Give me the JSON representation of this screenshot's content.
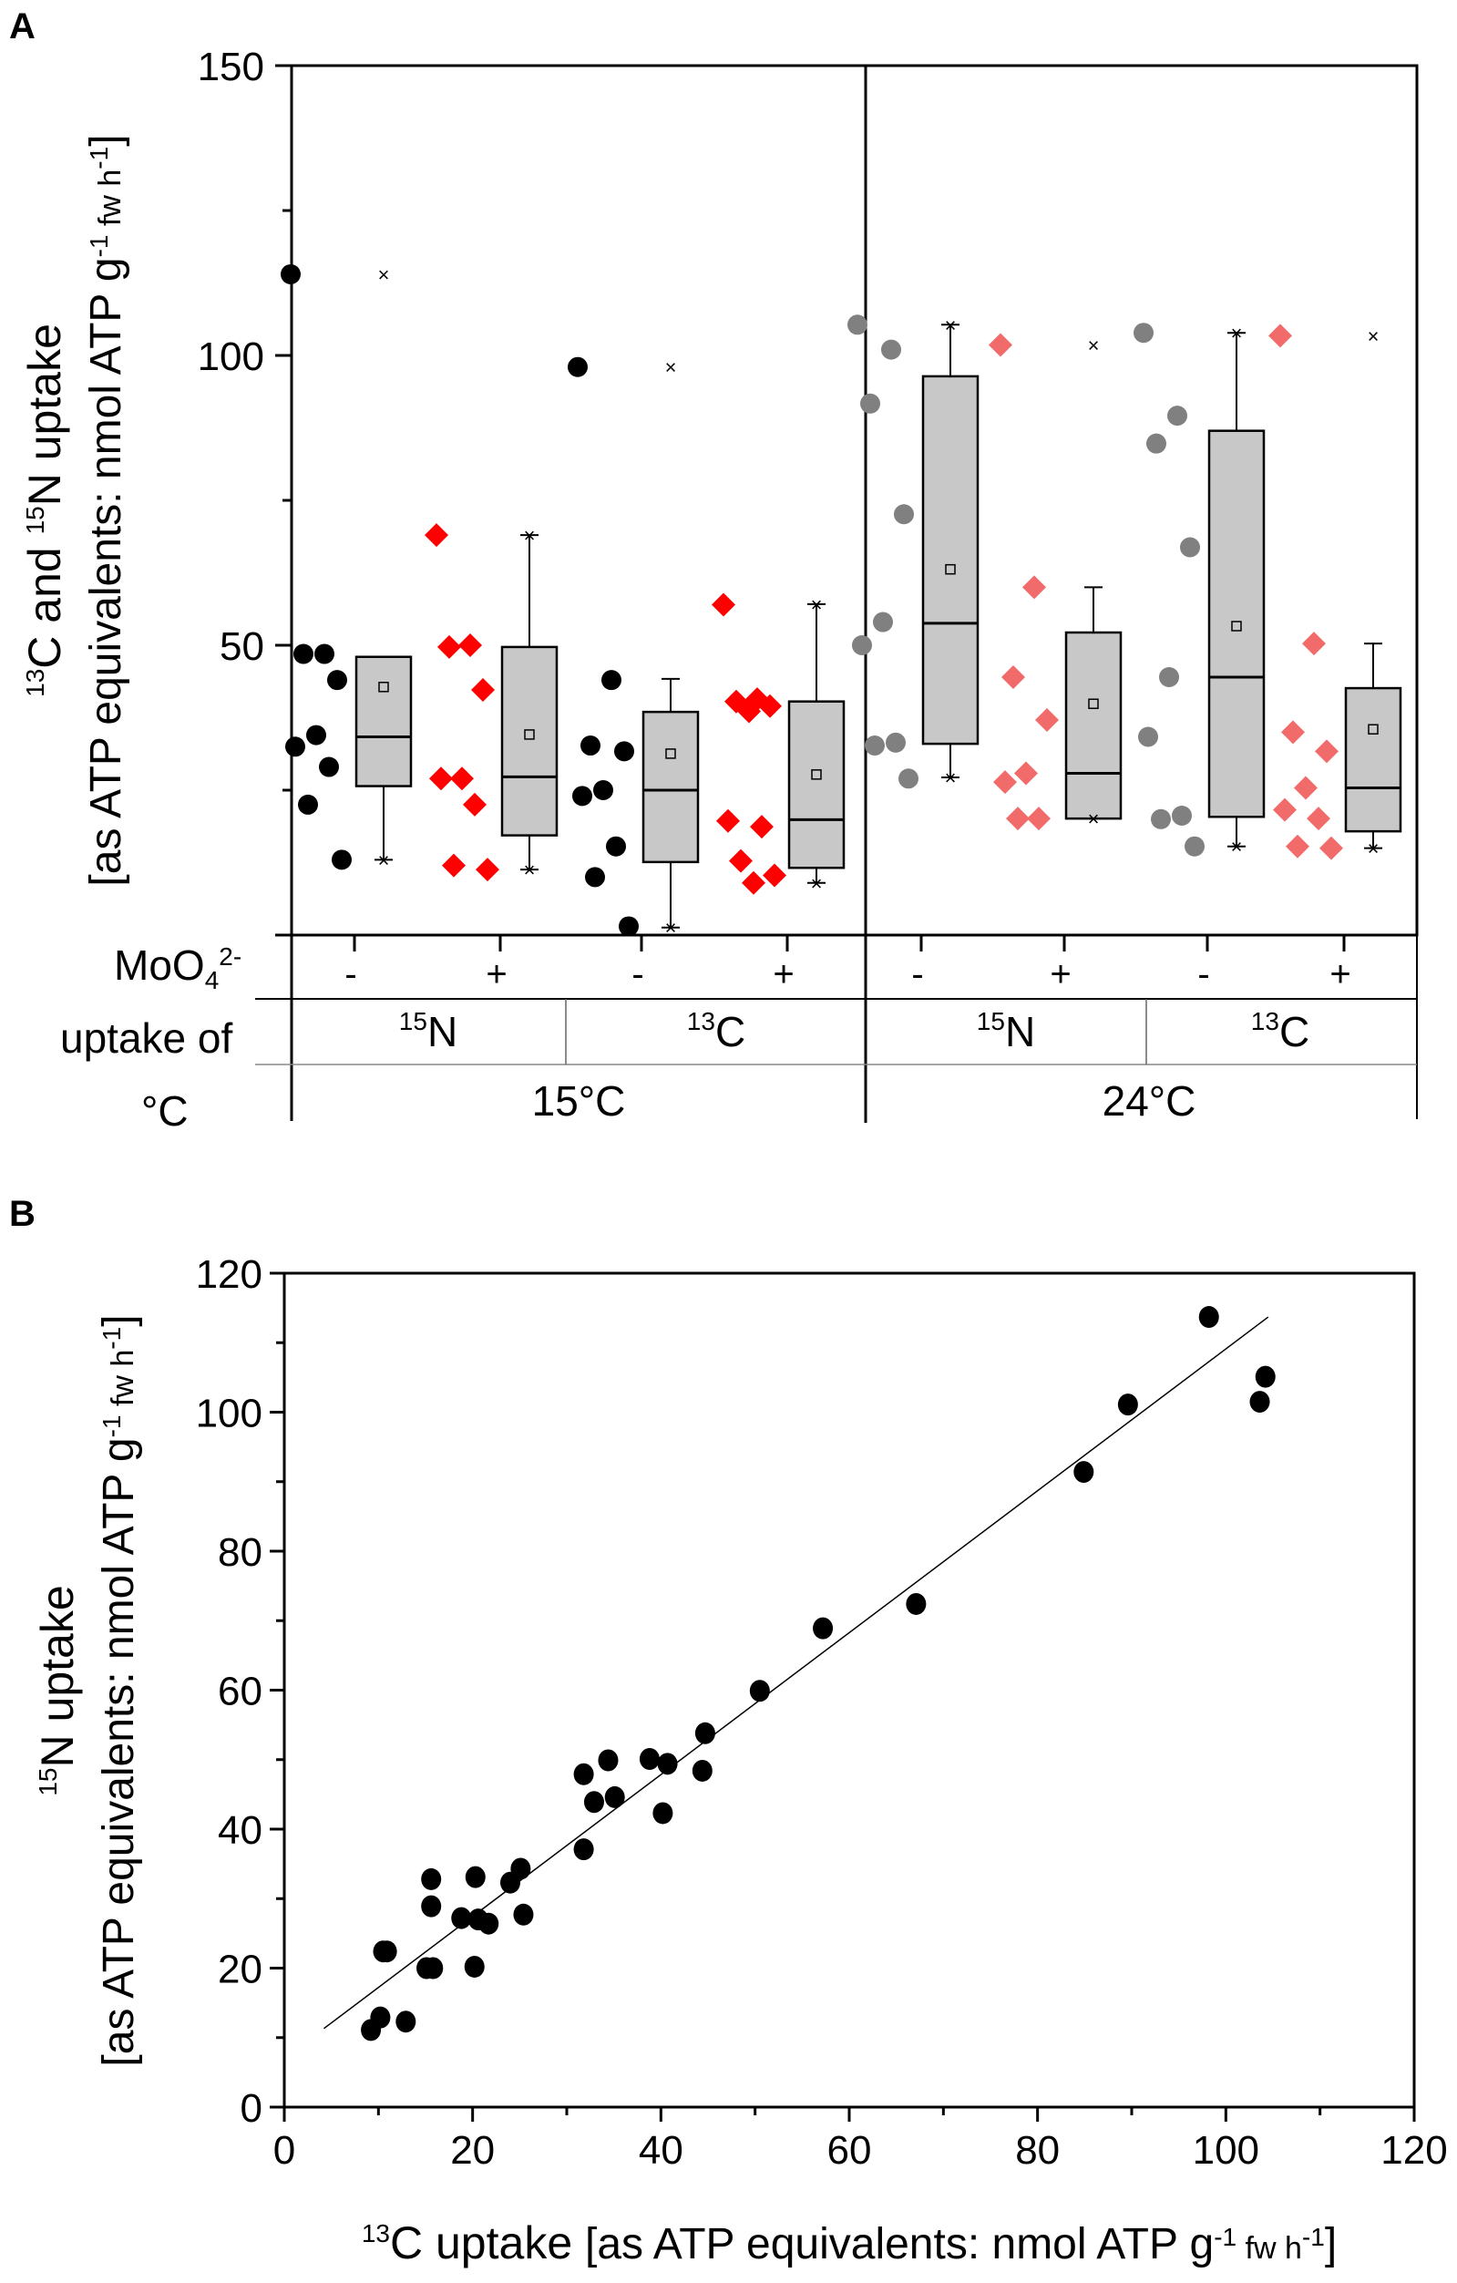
{
  "chart_data": [
    {
      "type": "box",
      "panel_label": "A",
      "ylabel": {
        "sup1": "13",
        "t1": "C and ",
        "sup2": "15",
        "t2": "N uptake",
        "bracket": "[as ATP equivalents: nmol ATP g",
        "sup3": "-1",
        "t3": " fw h",
        "sup4": "-1",
        "t4": "]"
      },
      "ylim": [
        0,
        150
      ],
      "yticks": [
        50,
        100,
        150
      ],
      "row_labels": {
        "moo4": "MoO",
        "moo4_sub": "4",
        "moo4_sup": "2-",
        "uptake_of": "uptake of",
        "temp": "°C"
      },
      "temperatures": [
        "15°C",
        "24°C"
      ],
      "isotopes": [
        {
          "sup": "15",
          "el": "N"
        },
        {
          "sup": "13",
          "el": "C"
        },
        {
          "sup": "15",
          "el": "N"
        },
        {
          "sup": "13",
          "el": "C"
        }
      ],
      "colors": {
        "black": "#000000",
        "red": "#ff0000",
        "gray": "#808080",
        "salmon": "#f26b6b",
        "box": "#c8c8c8"
      },
      "groups": [
        {
          "temp": "15°C",
          "isotope": "15N",
          "moo4": "-",
          "marker": "circle",
          "color": "black",
          "points": [
            114,
            48.5,
            48.5,
            44,
            34.5,
            32.5,
            29,
            22.5,
            13
          ],
          "box": {
            "q1": 25.7,
            "median": 34.2,
            "q3": 48,
            "mean": 42.8,
            "whisker_low": 13,
            "whisker_high": 48,
            "max": 114
          }
        },
        {
          "temp": "15°C",
          "isotope": "15N",
          "moo4": "+",
          "marker": "diamond",
          "color": "red",
          "points": [
            69,
            50,
            49.7,
            42.3,
            27,
            27,
            22.5,
            12,
            11.3
          ],
          "box": {
            "q1": 17.2,
            "median": 27.3,
            "q3": 49.7,
            "mean": 34.6,
            "whisker_low": 11.3,
            "whisker_high": 69,
            "max": 69
          }
        },
        {
          "temp": "15°C",
          "isotope": "13C",
          "moo4": "-",
          "marker": "circle",
          "color": "black",
          "points": [
            98,
            44,
            32.7,
            31.7,
            25,
            24,
            15.3,
            10,
            1.5
          ],
          "box": {
            "q1": 12.6,
            "median": 25,
            "q3": 38.5,
            "mean": 31.3,
            "whisker_low": 1.3,
            "whisker_high": 44.2,
            "max": 98
          }
        },
        {
          "temp": "15°C",
          "isotope": "13C",
          "moo4": "+",
          "marker": "diamond",
          "color": "red",
          "points": [
            57,
            40.7,
            40.3,
            39.5,
            38.6,
            19.7,
            18.7,
            12.8,
            10.3,
            9
          ],
          "box": {
            "q1": 11.6,
            "median": 19.9,
            "q3": 40.3,
            "mean": 27.7,
            "whisker_low": 9,
            "whisker_high": 57.1,
            "max": 57.1
          }
        },
        {
          "temp": "24°C",
          "isotope": "15N",
          "moo4": "-",
          "marker": "circle",
          "color": "gray",
          "points": [
            105.3,
            101,
            91.7,
            72.6,
            54,
            50,
            33.2,
            32.7,
            27
          ],
          "box": {
            "q1": 33,
            "median": 53.8,
            "q3": 96.4,
            "mean": 63.1,
            "whisker_low": 27.2,
            "whisker_high": 105.3,
            "max": 105.3
          }
        },
        {
          "temp": "24°C",
          "isotope": "15N",
          "moo4": "+",
          "marker": "diamond",
          "color": "salmon",
          "points": [
            101.8,
            60,
            44.5,
            37.1,
            27.9,
            26.4,
            20.1,
            20.1
          ],
          "box": {
            "q1": 20.1,
            "median": 27.9,
            "q3": 52.2,
            "mean": 39.9,
            "whisker_low": 20.1,
            "whisker_high": 60,
            "max": 101.8
          }
        },
        {
          "temp": "24°C",
          "isotope": "13C",
          "moo4": "-",
          "marker": "circle",
          "color": "gray",
          "points": [
            103.9,
            89.6,
            84.8,
            66.9,
            44.5,
            34.2,
            20.6,
            20,
            15.3
          ],
          "box": {
            "q1": 20.4,
            "median": 44.5,
            "q3": 87,
            "mean": 53.3,
            "whisker_low": 15.3,
            "whisker_high": 103.9,
            "max": 103.9
          }
        },
        {
          "temp": "24°C",
          "isotope": "13C",
          "moo4": "+",
          "marker": "diamond",
          "color": "salmon",
          "points": [
            103.4,
            50.3,
            35,
            31.7,
            25.4,
            21.6,
            20.1,
            15.3,
            15
          ],
          "box": {
            "q1": 17.9,
            "median": 25.4,
            "q3": 42.6,
            "mean": 35.5,
            "whisker_low": 15,
            "whisker_high": 50.3,
            "max": 103.4
          }
        }
      ]
    },
    {
      "type": "scatter",
      "panel_label": "B",
      "xlabel": {
        "sup1": "13",
        "t1": "C uptake ",
        "bracket": "[as ATP equivalents: nmol ATP g",
        "sup2": "-1",
        "t2": " fw h",
        "sup3": "-1",
        "t3": "]"
      },
      "ylabel": {
        "sup1": "15",
        "t1": "N uptake",
        "bracket": "[as ATP equivalents: nmol ATP g",
        "sup2": "-1",
        "t2": " fw h",
        "sup3": "-1",
        "t3": "]"
      },
      "xlim": [
        0,
        120
      ],
      "ylim": [
        0,
        120
      ],
      "xticks": [
        0,
        20,
        40,
        60,
        80,
        100,
        120
      ],
      "yticks": [
        0,
        20,
        40,
        60,
        80,
        100,
        120
      ],
      "points": [
        [
          9.2,
          11.1
        ],
        [
          10.2,
          12.9
        ],
        [
          12.9,
          12.3
        ],
        [
          10.5,
          22.4
        ],
        [
          10.9,
          22.4
        ],
        [
          15.1,
          20
        ],
        [
          15.8,
          20
        ],
        [
          15.6,
          32.8
        ],
        [
          15.6,
          28.9
        ],
        [
          18.8,
          27.2
        ],
        [
          20.2,
          20.2
        ],
        [
          20.3,
          33.1
        ],
        [
          20.6,
          27
        ],
        [
          21.7,
          26.4
        ],
        [
          24,
          32.3
        ],
        [
          25.1,
          34.3
        ],
        [
          25.4,
          27.7
        ],
        [
          31.8,
          37.1
        ],
        [
          31.8,
          47.9
        ],
        [
          32.9,
          43.9
        ],
        [
          34.4,
          49.9
        ],
        [
          35.1,
          44.6
        ],
        [
          38.8,
          50.1
        ],
        [
          40.2,
          42.3
        ],
        [
          40.7,
          49.4
        ],
        [
          44.4,
          48.4
        ],
        [
          44.7,
          53.8
        ],
        [
          50.5,
          59.9
        ],
        [
          57.2,
          68.9
        ],
        [
          67.1,
          72.4
        ],
        [
          84.9,
          91.4
        ],
        [
          89.6,
          101.1
        ],
        [
          98.2,
          113.7
        ],
        [
          103.6,
          101.5
        ],
        [
          104.2,
          105.1
        ]
      ],
      "fit_line": [
        [
          4.2,
          11.3
        ],
        [
          104.5,
          113.7
        ]
      ]
    }
  ]
}
